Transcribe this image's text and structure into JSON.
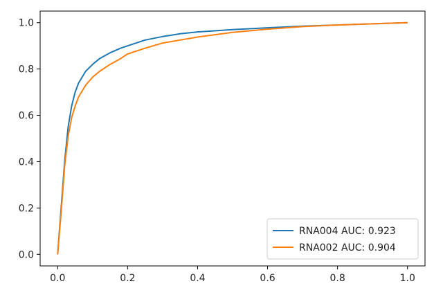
{
  "chart_data": {
    "type": "line",
    "title": "",
    "xlabel": "",
    "ylabel": "",
    "xlim": [
      -0.05,
      1.05
    ],
    "ylim": [
      -0.05,
      1.05
    ],
    "xticks": [
      "0.0",
      "0.2",
      "0.4",
      "0.6",
      "0.8",
      "1.0"
    ],
    "yticks": [
      "0.0",
      "0.2",
      "0.4",
      "0.6",
      "0.8",
      "1.0"
    ],
    "grid": false,
    "legend_position": "lower-right",
    "series": [
      {
        "name": "RNA004 AUC: 0.923",
        "color": "#1f77b4",
        "x": [
          0.0,
          0.01,
          0.02,
          0.03,
          0.04,
          0.05,
          0.06,
          0.08,
          0.1,
          0.12,
          0.15,
          0.18,
          0.2,
          0.25,
          0.3,
          0.35,
          0.4,
          0.5,
          0.6,
          0.7,
          0.8,
          0.9,
          1.0
        ],
        "y": [
          0.0,
          0.2,
          0.4,
          0.55,
          0.64,
          0.7,
          0.74,
          0.79,
          0.82,
          0.845,
          0.87,
          0.89,
          0.9,
          0.925,
          0.94,
          0.952,
          0.96,
          0.97,
          0.978,
          0.985,
          0.99,
          0.995,
          1.0
        ]
      },
      {
        "name": "RNA002 AUC: 0.904",
        "color": "#ff7f0e",
        "x": [
          0.0,
          0.01,
          0.02,
          0.03,
          0.04,
          0.05,
          0.06,
          0.08,
          0.1,
          0.12,
          0.15,
          0.18,
          0.2,
          0.25,
          0.3,
          0.35,
          0.4,
          0.5,
          0.6,
          0.7,
          0.8,
          0.9,
          1.0
        ],
        "y": [
          0.0,
          0.18,
          0.38,
          0.51,
          0.59,
          0.64,
          0.68,
          0.73,
          0.765,
          0.79,
          0.82,
          0.845,
          0.865,
          0.89,
          0.912,
          0.925,
          0.938,
          0.958,
          0.972,
          0.983,
          0.99,
          0.995,
          1.0
        ]
      }
    ]
  }
}
